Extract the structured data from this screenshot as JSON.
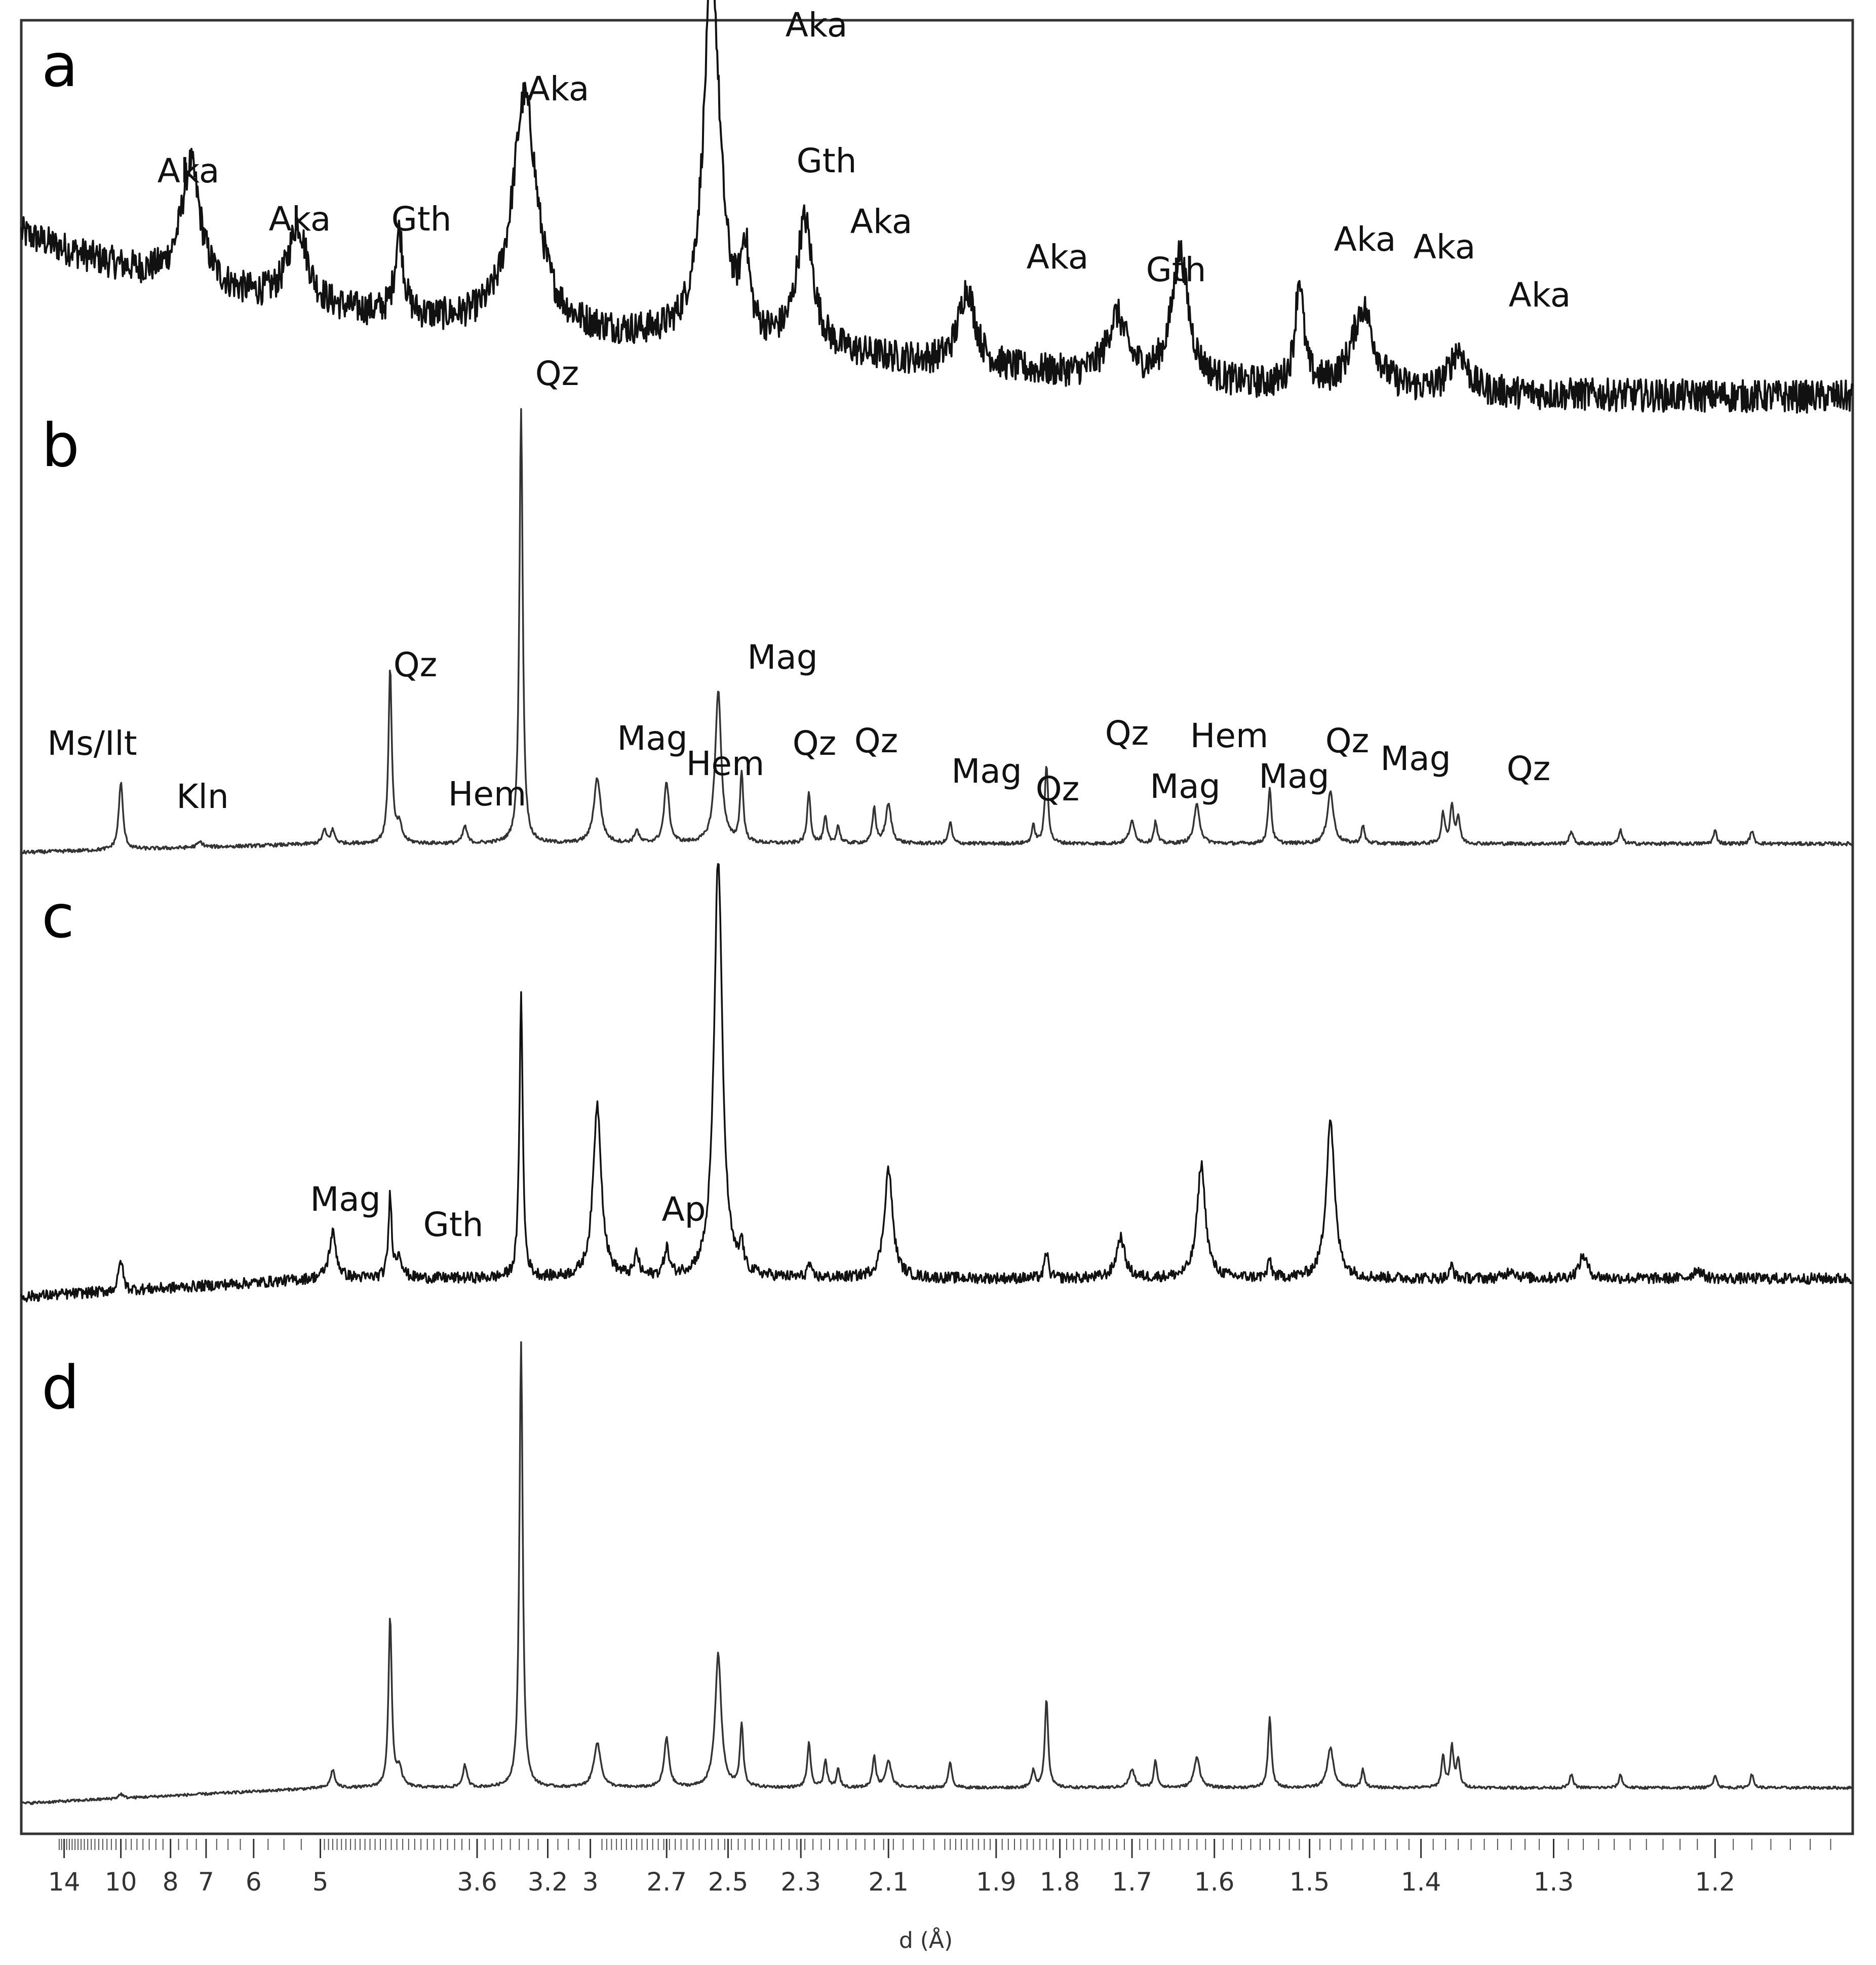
{
  "chart_data": {
    "type": "line",
    "xlabel": "d (Å)",
    "x_scale": "d-spacing (2θ-linear)",
    "x_ticks": [
      {
        "d": 14,
        "label": "14"
      },
      {
        "d": 10,
        "label": "10"
      },
      {
        "d": 8,
        "label": "8"
      },
      {
        "d": 7,
        "label": "7"
      },
      {
        "d": 6,
        "label": "6"
      },
      {
        "d": 5,
        "label": "5"
      },
      {
        "d": 3.6,
        "label": "3.6"
      },
      {
        "d": 3.2,
        "label": "3.2"
      },
      {
        "d": 3,
        "label": "3"
      },
      {
        "d": 2.7,
        "label": "2.7"
      },
      {
        "d": 2.5,
        "label": "2.5"
      },
      {
        "d": 2.3,
        "label": "2.3"
      },
      {
        "d": 2.1,
        "label": "2.1"
      },
      {
        "d": 1.9,
        "label": "1.9"
      },
      {
        "d": 1.8,
        "label": "1.8"
      },
      {
        "d": 1.7,
        "label": "1.7"
      },
      {
        "d": 1.6,
        "label": "1.6"
      },
      {
        "d": 1.5,
        "label": "1.5"
      },
      {
        "d": 1.4,
        "label": "1.4"
      },
      {
        "d": 1.3,
        "label": "1.3"
      },
      {
        "d": 1.2,
        "label": "1.2"
      }
    ],
    "series": [
      {
        "panel": "a",
        "color": "#111111",
        "noise": 0.07,
        "background": {
          "start": 0.72,
          "end": 0.03,
          "decay": 2.2
        },
        "peaks": [
          {
            "d": 7.4,
            "h": 0.52,
            "w": 0.007
          },
          {
            "d": 5.3,
            "h": 0.34,
            "w": 0.007
          },
          {
            "d": 4.18,
            "h": 0.36,
            "w": 0.003
          },
          {
            "d": 3.32,
            "h": 1.0,
            "w": 0.009
          },
          {
            "d": 2.55,
            "h": 1.6,
            "w": 0.006
          },
          {
            "d": 2.45,
            "h": 0.35,
            "w": 0.003
          },
          {
            "d": 2.29,
            "h": 0.55,
            "w": 0.006
          },
          {
            "d": 1.95,
            "h": 0.33,
            "w": 0.006
          },
          {
            "d": 1.72,
            "h": 0.26,
            "w": 0.007
          },
          {
            "d": 1.64,
            "h": 0.55,
            "w": 0.006
          },
          {
            "d": 1.51,
            "h": 0.46,
            "w": 0.003
          },
          {
            "d": 1.45,
            "h": 0.35,
            "w": 0.008
          },
          {
            "d": 1.37,
            "h": 0.18,
            "w": 0.006
          }
        ],
        "labels": [
          {
            "text": "Aka",
            "d": 7.4
          },
          {
            "text": "Aka",
            "d": 5.3
          },
          {
            "text": "Gth",
            "d": 4.18
          },
          {
            "text": "Aka",
            "d": 3.32
          },
          {
            "text": "Aka",
            "d": 2.55
          },
          {
            "text": "Gth",
            "d": 2.45
          },
          {
            "text": "Aka",
            "d": 2.29
          },
          {
            "text": "Aka",
            "d": 1.95
          },
          {
            "text": "Gth",
            "d": 1.76
          },
          {
            "text": "Aka",
            "d": 1.52
          },
          {
            "text": "Aka",
            "d": 1.45
          },
          {
            "text": "Aka",
            "d": 1.37
          }
        ]
      },
      {
        "panel": "b",
        "color": "#333333",
        "noise": 0.004,
        "background": {
          "start": 0.02,
          "end": 0.04,
          "decay": 0
        },
        "peaks": [
          {
            "d": 10.0,
            "h": 0.155,
            "w": 0.0015
          },
          {
            "d": 7.15,
            "h": 0.012,
            "w": 0.002
          },
          {
            "d": 4.95,
            "h": 0.03,
            "w": 0.0015
          },
          {
            "d": 4.85,
            "h": 0.03,
            "w": 0.0015
          },
          {
            "d": 4.26,
            "h": 0.4,
            "w": 0.0012
          },
          {
            "d": 4.18,
            "h": 0.04,
            "w": 0.002
          },
          {
            "d": 3.68,
            "h": 0.04,
            "w": 0.0015
          },
          {
            "d": 3.34,
            "h": 1.0,
            "w": 0.0012
          },
          {
            "d": 2.97,
            "h": 0.15,
            "w": 0.0025
          },
          {
            "d": 2.81,
            "h": 0.03,
            "w": 0.0015
          },
          {
            "d": 2.7,
            "h": 0.14,
            "w": 0.0018
          },
          {
            "d": 2.53,
            "h": 0.35,
            "w": 0.0022
          },
          {
            "d": 2.46,
            "h": 0.16,
            "w": 0.0012
          },
          {
            "d": 2.28,
            "h": 0.12,
            "w": 0.0012
          },
          {
            "d": 2.24,
            "h": 0.06,
            "w": 0.0012
          },
          {
            "d": 2.21,
            "h": 0.04,
            "w": 0.0012
          },
          {
            "d": 2.13,
            "h": 0.08,
            "w": 0.0012
          },
          {
            "d": 2.1,
            "h": 0.09,
            "w": 0.002
          },
          {
            "d": 1.98,
            "h": 0.05,
            "w": 0.0012
          },
          {
            "d": 1.84,
            "h": 0.04,
            "w": 0.0012
          },
          {
            "d": 1.82,
            "h": 0.18,
            "w": 0.0012
          },
          {
            "d": 1.7,
            "h": 0.05,
            "w": 0.002
          },
          {
            "d": 1.67,
            "h": 0.05,
            "w": 0.0012
          },
          {
            "d": 1.62,
            "h": 0.09,
            "w": 0.002
          },
          {
            "d": 1.54,
            "h": 0.13,
            "w": 0.0012
          },
          {
            "d": 1.48,
            "h": 0.12,
            "w": 0.0022
          },
          {
            "d": 1.45,
            "h": 0.04,
            "w": 0.0012
          },
          {
            "d": 1.382,
            "h": 0.07,
            "w": 0.0012
          },
          {
            "d": 1.375,
            "h": 0.09,
            "w": 0.0012
          },
          {
            "d": 1.37,
            "h": 0.06,
            "w": 0.0012
          },
          {
            "d": 1.288,
            "h": 0.03,
            "w": 0.0012
          },
          {
            "d": 1.256,
            "h": 0.03,
            "w": 0.0012
          },
          {
            "d": 1.2,
            "h": 0.03,
            "w": 0.0012
          },
          {
            "d": 1.18,
            "h": 0.03,
            "w": 0.0012
          }
        ],
        "labels": [
          {
            "text": "Qz",
            "d": 3.34
          },
          {
            "text": "Ms/Ilt",
            "d": 12.0
          },
          {
            "text": "Kln",
            "d": 7.15
          },
          {
            "text": "Qz",
            "d": 4.26
          },
          {
            "text": "Hem",
            "d": 3.68
          },
          {
            "text": "Mag",
            "d": 2.97
          },
          {
            "text": "Hem",
            "d": 2.7
          },
          {
            "text": "Mag",
            "d": 2.53
          },
          {
            "text": "Qz",
            "d": 2.46
          },
          {
            "text": "Qz",
            "d": 2.28
          },
          {
            "text": "Mag",
            "d": 2.09
          },
          {
            "text": "Qz",
            "d": 1.98
          },
          {
            "text": "Qz",
            "d": 1.82
          },
          {
            "text": "Mag",
            "d": 1.71
          },
          {
            "text": "Hem",
            "d": 1.69
          },
          {
            "text": "Mag",
            "d": 1.615
          },
          {
            "text": "Qz",
            "d": 1.54
          },
          {
            "text": "Mag",
            "d": 1.48
          },
          {
            "text": "Qz",
            "d": 1.375
          }
        ]
      },
      {
        "panel": "c",
        "color": "#111111",
        "noise": 0.012,
        "background": {
          "start": 0.0,
          "end": 0.04,
          "decay": 0
        },
        "peaks": [
          {
            "d": 10.0,
            "h": 0.07,
            "w": 0.0015
          },
          {
            "d": 4.85,
            "h": 0.1,
            "w": 0.0025
          },
          {
            "d": 4.26,
            "h": 0.18,
            "w": 0.0012
          },
          {
            "d": 4.18,
            "h": 0.05,
            "w": 0.002
          },
          {
            "d": 3.34,
            "h": 0.62,
            "w": 0.0012
          },
          {
            "d": 2.97,
            "h": 0.38,
            "w": 0.003
          },
          {
            "d": 2.81,
            "h": 0.05,
            "w": 0.0015
          },
          {
            "d": 2.7,
            "h": 0.06,
            "w": 0.0018
          },
          {
            "d": 2.53,
            "h": 0.92,
            "w": 0.003
          },
          {
            "d": 2.46,
            "h": 0.06,
            "w": 0.0012
          },
          {
            "d": 2.28,
            "h": 0.03,
            "w": 0.0012
          },
          {
            "d": 2.1,
            "h": 0.24,
            "w": 0.003
          },
          {
            "d": 1.82,
            "h": 0.06,
            "w": 0.0012
          },
          {
            "d": 1.715,
            "h": 0.09,
            "w": 0.003
          },
          {
            "d": 1.615,
            "h": 0.25,
            "w": 0.003
          },
          {
            "d": 1.54,
            "h": 0.04,
            "w": 0.0012
          },
          {
            "d": 1.48,
            "h": 0.35,
            "w": 0.003
          },
          {
            "d": 1.375,
            "h": 0.03,
            "w": 0.0012
          },
          {
            "d": 1.33,
            "h": 0.02,
            "w": 0.003
          },
          {
            "d": 1.28,
            "h": 0.05,
            "w": 0.003
          },
          {
            "d": 1.21,
            "h": 0.02,
            "w": 0.003
          }
        ],
        "labels": [
          {
            "text": "Mag",
            "d": 4.85
          },
          {
            "text": "Gth",
            "d": 4.0
          },
          {
            "text": "Ap",
            "d": 2.8
          }
        ]
      },
      {
        "panel": "d",
        "color": "#333333",
        "noise": 0.003,
        "background": {
          "start": 0.0,
          "end": 0.035,
          "decay": 0
        },
        "peaks": [
          {
            "d": 10.0,
            "h": 0.01,
            "w": 0.0015
          },
          {
            "d": 4.85,
            "h": 0.04,
            "w": 0.0015
          },
          {
            "d": 4.26,
            "h": 0.38,
            "w": 0.0012
          },
          {
            "d": 4.18,
            "h": 0.04,
            "w": 0.002
          },
          {
            "d": 3.68,
            "h": 0.05,
            "w": 0.0015
          },
          {
            "d": 3.34,
            "h": 1.0,
            "w": 0.0012
          },
          {
            "d": 2.97,
            "h": 0.1,
            "w": 0.0025
          },
          {
            "d": 2.7,
            "h": 0.11,
            "w": 0.0018
          },
          {
            "d": 2.53,
            "h": 0.3,
            "w": 0.0022
          },
          {
            "d": 2.46,
            "h": 0.14,
            "w": 0.0012
          },
          {
            "d": 2.28,
            "h": 0.1,
            "w": 0.0012
          },
          {
            "d": 2.24,
            "h": 0.06,
            "w": 0.0012
          },
          {
            "d": 2.21,
            "h": 0.04,
            "w": 0.0012
          },
          {
            "d": 2.13,
            "h": 0.07,
            "w": 0.0012
          },
          {
            "d": 2.1,
            "h": 0.06,
            "w": 0.002
          },
          {
            "d": 1.98,
            "h": 0.06,
            "w": 0.0012
          },
          {
            "d": 1.84,
            "h": 0.04,
            "w": 0.0012
          },
          {
            "d": 1.82,
            "h": 0.2,
            "w": 0.0012
          },
          {
            "d": 1.7,
            "h": 0.04,
            "w": 0.002
          },
          {
            "d": 1.67,
            "h": 0.06,
            "w": 0.0012
          },
          {
            "d": 1.62,
            "h": 0.07,
            "w": 0.002
          },
          {
            "d": 1.54,
            "h": 0.16,
            "w": 0.0012
          },
          {
            "d": 1.48,
            "h": 0.09,
            "w": 0.0022
          },
          {
            "d": 1.45,
            "h": 0.04,
            "w": 0.0012
          },
          {
            "d": 1.382,
            "h": 0.07,
            "w": 0.0012
          },
          {
            "d": 1.375,
            "h": 0.09,
            "w": 0.0012
          },
          {
            "d": 1.37,
            "h": 0.06,
            "w": 0.0012
          },
          {
            "d": 1.288,
            "h": 0.03,
            "w": 0.0012
          },
          {
            "d": 1.256,
            "h": 0.03,
            "w": 0.0012
          },
          {
            "d": 1.2,
            "h": 0.03,
            "w": 0.0012
          },
          {
            "d": 1.18,
            "h": 0.03,
            "w": 0.0012
          }
        ],
        "labels": []
      }
    ]
  }
}
